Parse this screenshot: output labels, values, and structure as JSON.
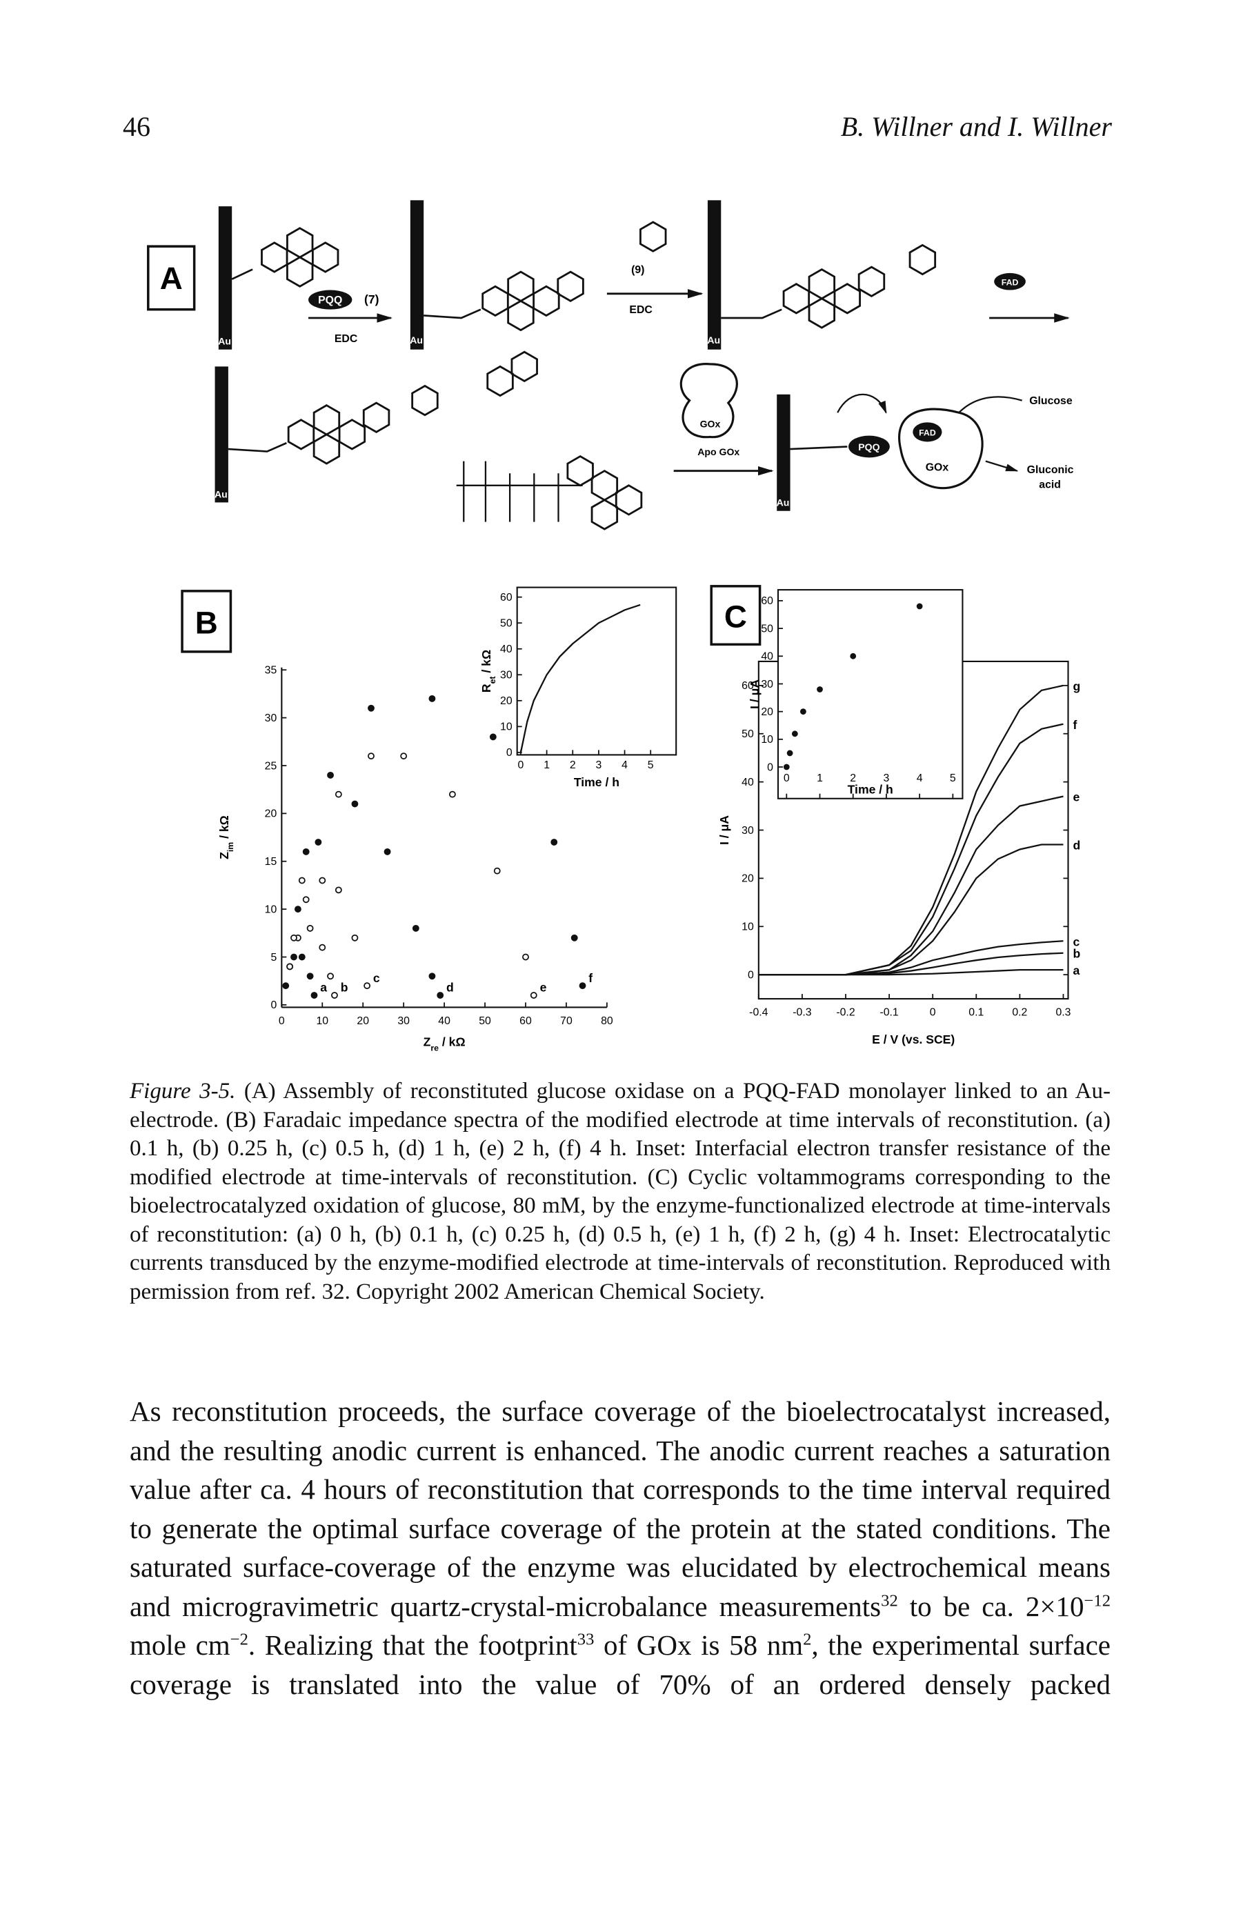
{
  "header": {
    "page_number": "46",
    "running_head": "B. Willner and I. Willner"
  },
  "figure": {
    "panel_a": {
      "labels": [
        "A",
        "Au",
        "PQQ",
        "(7)",
        "EDC",
        "Au",
        "(9)",
        "EDC",
        "Au",
        "FAD",
        "Au",
        "GOx",
        "Apo GOx",
        "Au",
        "PQQ",
        "FAD",
        "GOx",
        "Glucose",
        "Gluconic",
        "acid"
      ]
    },
    "panel_b": {
      "label": "B",
      "chart": {
        "type": "scatter",
        "x_label": {
          "main": "Z",
          "sub": "re",
          "unit": " / kΩ"
        },
        "y_label": {
          "main": "Z",
          "sub": "im",
          "unit": " / kΩ"
        },
        "xlim": [
          0,
          80
        ],
        "xticks": [
          0,
          10,
          20,
          30,
          40,
          50,
          60,
          70,
          80
        ],
        "ylim": [
          0,
          35
        ],
        "yticks": [
          0,
          5,
          10,
          15,
          20,
          25,
          30,
          35
        ],
        "series": [
          {
            "name": "a",
            "marker": "filled",
            "x": [
              1,
              2,
              3,
              5,
              7,
              8
            ],
            "values": [
              2,
              4,
              5,
              5,
              3,
              1
            ]
          },
          {
            "name": "b",
            "marker": "open",
            "x": [
              2,
              4,
              7,
              10,
              12,
              13
            ],
            "values": [
              4,
              7,
              8,
              6,
              3,
              1
            ]
          },
          {
            "name": "c",
            "marker": "open",
            "x": [
              3,
              6,
              10,
              14,
              18,
              21
            ],
            "values": [
              7,
              11,
              13,
              12,
              7,
              2
            ]
          },
          {
            "name": "d",
            "marker": "filled",
            "x": [
              4,
              9,
              18,
              26,
              33,
              37,
              39
            ],
            "values": [
              10,
              17,
              21,
              16,
              8,
              3,
              1
            ]
          },
          {
            "name": "e",
            "marker": "open",
            "x": [
              5,
              14,
              22,
              30,
              42,
              53,
              60,
              62
            ],
            "values": [
              13,
              22,
              26,
              26,
              22,
              14,
              5,
              1
            ]
          },
          {
            "name": "f",
            "marker": "filled",
            "x": [
              6,
              12,
              22,
              37,
              52,
              67,
              72,
              74
            ],
            "values": [
              16,
              24,
              31,
              32,
              28,
              17,
              7,
              2
            ]
          }
        ]
      },
      "inset": {
        "type": "line",
        "x_label": {
          "main": "Time / h"
        },
        "y_label": {
          "main": "R",
          "sub": "et",
          "unit": " / kΩ"
        },
        "xlim": [
          0,
          5
        ],
        "xticks": [
          0,
          1,
          2,
          3,
          4,
          5
        ],
        "ylim": [
          0,
          60
        ],
        "yticks": [
          0,
          10,
          20,
          30,
          40,
          50,
          60
        ],
        "x": [
          0,
          0.25,
          0.5,
          1,
          1.5,
          2,
          3,
          4,
          4.6
        ],
        "series": [
          {
            "color": "#111111",
            "values": [
              0,
              12,
              20,
              30,
              37,
              42,
              50,
              55,
              57
            ]
          }
        ]
      }
    },
    "panel_c": {
      "label": "C",
      "chart": {
        "type": "line",
        "x_label": {
          "main": "E / V (vs. SCE)"
        },
        "y_label": {
          "main": "I / μA"
        },
        "xlim": [
          -0.4,
          0.3
        ],
        "xticks": [
          -0.4,
          -0.3,
          -0.2,
          -0.1,
          0,
          0.1,
          0.2,
          0.3
        ],
        "ylim": [
          -5,
          65
        ],
        "yticks": [
          0,
          10,
          20,
          30,
          40,
          50,
          60
        ],
        "x": [
          -0.4,
          -0.3,
          -0.2,
          -0.1,
          -0.05,
          0,
          0.05,
          0.1,
          0.15,
          0.2,
          0.25,
          0.3
        ],
        "series": [
          {
            "name": "a",
            "color": "#111111",
            "values": [
              0,
              0,
              0,
              0,
              0.1,
              0.2,
              0.4,
              0.6,
              0.8,
              1,
              1,
              1
            ]
          },
          {
            "name": "b",
            "color": "#111111",
            "values": [
              0,
              0,
              0,
              0.3,
              0.8,
              1.5,
              2.3,
              3,
              3.6,
              4,
              4.3,
              4.5
            ]
          },
          {
            "name": "c",
            "color": "#111111",
            "values": [
              0,
              0,
              0,
              0.5,
              1.5,
              3,
              4,
              5,
              5.8,
              6.3,
              6.7,
              7
            ]
          },
          {
            "name": "d",
            "color": "#111111",
            "values": [
              0,
              0,
              0,
              1,
              3,
              7,
              13,
              20,
              24,
              26,
              27,
              27
            ]
          },
          {
            "name": "e",
            "color": "#111111",
            "values": [
              0,
              0,
              0,
              1,
              4,
              9,
              17,
              26,
              31,
              35,
              36,
              37
            ]
          },
          {
            "name": "f",
            "color": "#111111",
            "values": [
              0,
              0,
              0,
              2,
              5,
              12,
              22,
              33,
              41,
              48,
              51,
              52
            ]
          },
          {
            "name": "g",
            "color": "#111111",
            "values": [
              0,
              0,
              0,
              2,
              6,
              14,
              25,
              38,
              47,
              55,
              59,
              60
            ]
          }
        ]
      },
      "inset": {
        "type": "scatter",
        "x_label": {
          "main": "Time / h"
        },
        "y_label": {
          "main": "I / μA"
        },
        "xlim": [
          0,
          5
        ],
        "xticks": [
          0,
          1,
          2,
          3,
          4,
          5
        ],
        "ylim": [
          0,
          60
        ],
        "yticks": [
          0,
          10,
          20,
          30,
          40,
          50,
          60
        ],
        "series": [
          {
            "marker": "filled",
            "x": [
              0,
              0.1,
              0.25,
              0.5,
              1,
              2,
              4
            ],
            "values": [
              0,
              5,
              12,
              20,
              28,
              40,
              58
            ]
          }
        ]
      }
    }
  },
  "caption": {
    "label": "Figure 3-5.",
    "text": "(A) Assembly of reconstituted glucose oxidase on a PQQ-FAD monolayer linked to an Au-electrode. (B) Faradaic impedance spectra of the modified electrode at time intervals of reconstitution. (a) 0.1 h, (b) 0.25 h, (c) 0.5 h, (d) 1 h, (e) 2 h, (f) 4 h. Inset: Interfacial electron transfer resistance of the modified electrode at time-intervals of reconstitution. (C) Cyclic voltammograms corresponding to the bioelectrocatalyzed oxidation of glucose, 80 mM, by the enzyme-functionalized electrode at time-intervals of reconstitution: (a) 0 h, (b) 0.1 h, (c) 0.25 h, (d) 0.5 h, (e) 1 h, (f) 2 h, (g) 4 h. Inset: Electrocatalytic currents transduced by the enzyme-modified electrode at time-intervals of reconstitution. Reproduced with permission from ref. 32. Copyright 2002 American Chemical Society."
  },
  "body": {
    "segments": [
      "As reconstitution proceeds, the surface coverage of the bioelectrocatalyst increased, and the resulting anodic current is enhanced. The anodic current reaches a saturation value after ca. 4 hours of reconstitution that corresponds to the time interval required to generate the optimal surface coverage of the protein at the stated conditions. The saturated surface-coverage of the enzyme was elucidated by electrochemical means and microgravimetric quartz-crystal-microbalance measurements",
      "32",
      " to be ca. 2×10",
      "−12",
      " mole cm",
      "−2",
      ". Realizing that the footprint",
      "33",
      " of GOx is 58 nm",
      "2",
      ", the experimental surface coverage is translated into the value of 70% of an ordered densely packed"
    ]
  }
}
